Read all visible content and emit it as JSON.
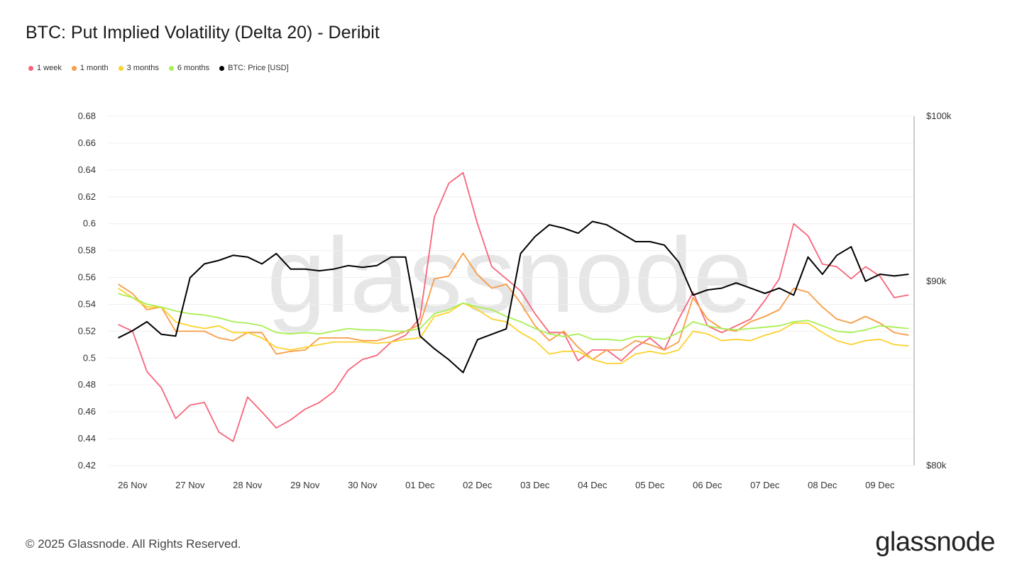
{
  "title": "BTC: Put Implied Volatility (Delta 20) - Deribit",
  "footer": "© 2025 Glassnode. All Rights Reserved.",
  "logo": "glassnode",
  "watermark": "glassnode",
  "chart_data": {
    "type": "line",
    "title": "BTC: Put Implied Volatility (Delta 20) - Deribit",
    "ylim": [
      0.42,
      0.68
    ],
    "y_ticks": [
      "0.68",
      "0.66",
      "0.64",
      "0.62",
      "0.6",
      "0.58",
      "0.56",
      "0.54",
      "0.52",
      "0.5",
      "0.48",
      "0.46",
      "0.44",
      "0.42"
    ],
    "y_tick_values": [
      0.68,
      0.66,
      0.64,
      0.62,
      0.6,
      0.58,
      0.56,
      0.54,
      0.52,
      0.5,
      0.48,
      0.46,
      0.44,
      0.42
    ],
    "y2_scale": "log",
    "y2lim": [
      80000,
      100000
    ],
    "y2_ticks": [
      {
        "label": "$100k",
        "value": 100000
      },
      {
        "label": "$90k",
        "value": 90000
      },
      {
        "label": "$80k",
        "value": 80000
      }
    ],
    "xlim": [
      "2025-11-25 14:00",
      "2025-12-09 14:00"
    ],
    "x_ticks": [
      {
        "label": "26 Nov",
        "date": "2025-11-26"
      },
      {
        "label": "27 Nov",
        "date": "2025-11-27"
      },
      {
        "label": "28 Nov",
        "date": "2025-11-28"
      },
      {
        "label": "29 Nov",
        "date": "2025-11-29"
      },
      {
        "label": "30 Nov",
        "date": "2025-11-30"
      },
      {
        "label": "01 Dec",
        "date": "2025-12-01"
      },
      {
        "label": "02 Dec",
        "date": "2025-12-02"
      },
      {
        "label": "03 Dec",
        "date": "2025-12-03"
      },
      {
        "label": "04 Dec",
        "date": "2025-12-04"
      },
      {
        "label": "05 Dec",
        "date": "2025-12-05"
      },
      {
        "label": "06 Dec",
        "date": "2025-12-06"
      },
      {
        "label": "07 Dec",
        "date": "2025-12-07"
      },
      {
        "label": "08 Dec",
        "date": "2025-12-08"
      },
      {
        "label": "09 Dec",
        "date": "2025-12-09"
      }
    ],
    "grid": true,
    "legend_placement": "top-left",
    "x": [
      "2025-11-25 18:00",
      "2025-11-26 00:00",
      "2025-11-26 06:00",
      "2025-11-26 12:00",
      "2025-11-26 18:00",
      "2025-11-27 00:00",
      "2025-11-27 06:00",
      "2025-11-27 12:00",
      "2025-11-27 18:00",
      "2025-11-28 00:00",
      "2025-11-28 06:00",
      "2025-11-28 12:00",
      "2025-11-28 18:00",
      "2025-11-29 00:00",
      "2025-11-29 06:00",
      "2025-11-29 12:00",
      "2025-11-29 18:00",
      "2025-11-30 00:00",
      "2025-11-30 06:00",
      "2025-11-30 12:00",
      "2025-11-30 18:00",
      "2025-12-01 00:00",
      "2025-12-01 06:00",
      "2025-12-01 12:00",
      "2025-12-01 18:00",
      "2025-12-02 00:00",
      "2025-12-02 06:00",
      "2025-12-02 12:00",
      "2025-12-02 18:00",
      "2025-12-03 00:00",
      "2025-12-03 06:00",
      "2025-12-03 12:00",
      "2025-12-03 18:00",
      "2025-12-04 00:00",
      "2025-12-04 06:00",
      "2025-12-04 12:00",
      "2025-12-04 18:00",
      "2025-12-05 00:00",
      "2025-12-05 06:00",
      "2025-12-05 12:00",
      "2025-12-05 18:00",
      "2025-12-06 00:00",
      "2025-12-06 06:00",
      "2025-12-06 12:00",
      "2025-12-06 18:00",
      "2025-12-07 00:00",
      "2025-12-07 06:00",
      "2025-12-07 12:00",
      "2025-12-07 18:00",
      "2025-12-08 00:00",
      "2025-12-08 06:00",
      "2025-12-08 12:00",
      "2025-12-08 18:00",
      "2025-12-09 00:00",
      "2025-12-09 06:00",
      "2025-12-09 12:00"
    ],
    "series": [
      {
        "name": "1 week",
        "color": "#f7657b",
        "axis": "left",
        "values": [
          0.525,
          0.52,
          0.49,
          0.478,
          0.455,
          0.465,
          0.467,
          0.445,
          0.438,
          0.471,
          0.46,
          0.448,
          0.454,
          0.462,
          0.467,
          0.475,
          0.491,
          0.499,
          0.502,
          0.512,
          0.517,
          0.53,
          0.605,
          0.63,
          0.638,
          0.6,
          0.568,
          0.559,
          0.55,
          0.533,
          0.519,
          0.519,
          0.498,
          0.506,
          0.506,
          0.498,
          0.508,
          0.515,
          0.506,
          0.529,
          0.549,
          0.524,
          0.519,
          0.524,
          0.529,
          0.543,
          0.559,
          0.6,
          0.591,
          0.57,
          0.568,
          0.559,
          0.568,
          0.561,
          0.545,
          0.547
        ]
      },
      {
        "name": "1 month",
        "color": "#f89c45",
        "axis": "left",
        "values": [
          0.555,
          0.548,
          0.536,
          0.538,
          0.52,
          0.52,
          0.52,
          0.515,
          0.513,
          0.519,
          0.519,
          0.503,
          0.505,
          0.506,
          0.515,
          0.515,
          0.515,
          0.513,
          0.513,
          0.516,
          0.52,
          0.525,
          0.559,
          0.561,
          0.578,
          0.562,
          0.552,
          0.555,
          0.541,
          0.524,
          0.513,
          0.52,
          0.508,
          0.499,
          0.506,
          0.506,
          0.513,
          0.51,
          0.506,
          0.512,
          0.545,
          0.529,
          0.522,
          0.52,
          0.527,
          0.531,
          0.536,
          0.552,
          0.549,
          0.538,
          0.529,
          0.526,
          0.531,
          0.526,
          0.519,
          0.517
        ]
      },
      {
        "name": "3 months",
        "color": "#fcd22c",
        "axis": "left",
        "values": [
          0.552,
          0.545,
          0.538,
          0.538,
          0.527,
          0.524,
          0.522,
          0.524,
          0.519,
          0.519,
          0.515,
          0.508,
          0.506,
          0.508,
          0.51,
          0.512,
          0.512,
          0.512,
          0.511,
          0.512,
          0.514,
          0.515,
          0.531,
          0.534,
          0.541,
          0.536,
          0.529,
          0.527,
          0.519,
          0.513,
          0.503,
          0.505,
          0.505,
          0.499,
          0.496,
          0.496,
          0.503,
          0.505,
          0.503,
          0.506,
          0.52,
          0.518,
          0.513,
          0.514,
          0.513,
          0.517,
          0.52,
          0.526,
          0.526,
          0.519,
          0.513,
          0.51,
          0.513,
          0.514,
          0.51,
          0.509
        ]
      },
      {
        "name": "6 months",
        "color": "#a8ef52",
        "axis": "left",
        "values": [
          0.548,
          0.545,
          0.54,
          0.538,
          0.535,
          0.533,
          0.532,
          0.53,
          0.527,
          0.526,
          0.524,
          0.519,
          0.518,
          0.519,
          0.518,
          0.52,
          0.522,
          0.521,
          0.521,
          0.52,
          0.52,
          0.522,
          0.533,
          0.536,
          0.541,
          0.538,
          0.536,
          0.531,
          0.527,
          0.522,
          0.518,
          0.516,
          0.518,
          0.514,
          0.514,
          0.513,
          0.516,
          0.516,
          0.514,
          0.519,
          0.527,
          0.524,
          0.522,
          0.521,
          0.522,
          0.523,
          0.524,
          0.527,
          0.528,
          0.524,
          0.52,
          0.519,
          0.521,
          0.524,
          0.523,
          0.522
        ]
      },
      {
        "name": "BTC: Price [USD]",
        "color": "#000000",
        "axis": "right",
        "values": [
          86800,
          87200,
          87700,
          87000,
          86900,
          90200,
          91000,
          91200,
          91500,
          91400,
          91000,
          91600,
          90700,
          90700,
          90600,
          90700,
          90900,
          90800,
          90900,
          91400,
          91400,
          86900,
          86200,
          85600,
          84900,
          86700,
          87000,
          87300,
          91600,
          92600,
          93300,
          93100,
          92800,
          93500,
          93300,
          92800,
          92300,
          92300,
          92100,
          91100,
          89200,
          89500,
          89600,
          89900,
          89600,
          89300,
          89600,
          89200,
          91400,
          90400,
          91500,
          92000,
          90000,
          90400,
          90300,
          90400
        ]
      }
    ]
  }
}
